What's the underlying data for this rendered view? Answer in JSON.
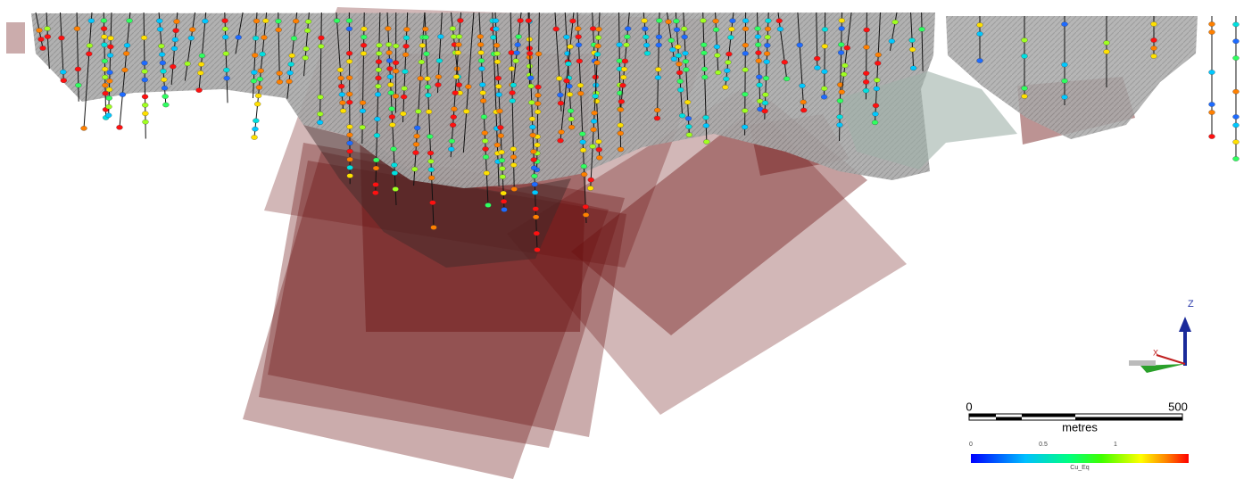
{
  "axes_indicator": {
    "z_label": "Z",
    "x_label": "X"
  },
  "scale_bar": {
    "start_label": "0",
    "end_label": "500",
    "unit": "metres"
  },
  "color_legend": {
    "ticks": [
      "0",
      "0.5",
      "1"
    ],
    "title": "Cu_Eq"
  }
}
